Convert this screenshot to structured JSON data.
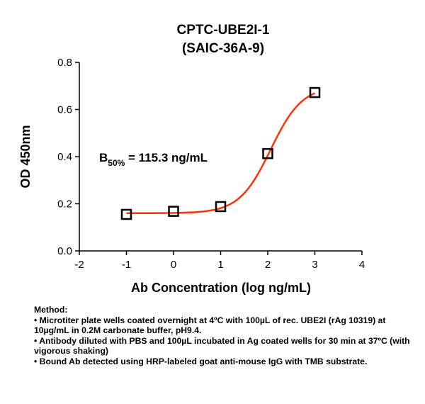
{
  "chart_data": {
    "type": "scatter",
    "title": [
      "CPTC-UBE2I-1",
      "(SAIC-36A-9)"
    ],
    "xlabel": "Ab Concentration (log ng/mL)",
    "ylabel": "OD 450nm",
    "xlim": [
      -2,
      4
    ],
    "ylim": [
      0.0,
      0.8
    ],
    "xticks": [
      "-2",
      "-1",
      "0",
      "1",
      "2",
      "3",
      "4"
    ],
    "yticks": [
      "0.0",
      "0.2",
      "0.4",
      "0.6",
      "0.8"
    ],
    "points": [
      {
        "x": -1,
        "y": 0.155
      },
      {
        "x": 0,
        "y": 0.168
      },
      {
        "x": 1,
        "y": 0.188
      },
      {
        "x": 2,
        "y": 0.413
      },
      {
        "x": 3,
        "y": 0.672
      }
    ],
    "fit_curve": {
      "bottom": 0.16,
      "top": 0.7,
      "log_ec50": 2.062,
      "hill": 1.3
    },
    "marker_color": "#000000",
    "curve_color": "#ff3300",
    "annotation": {
      "prefix": "B",
      "subscript": "50%",
      "text": " = 115.3 ng/mL"
    },
    "grid": false
  },
  "method": {
    "heading": "Method:",
    "lines": [
      "• Microtiter plate wells coated overnight at 4ºC  with 100µL of rec. UBE2I (rAg 10319) at 10µg/mL in 0.2M carbonate buffer, pH9.4.",
      "• Antibody diluted with PBS and 100µL incubated in Ag coated wells for 30 min at 37ºC (with vigorous shaking)",
      "• Bound Ab detected using HRP-labeled goat anti-mouse IgG with TMB substrate."
    ]
  }
}
